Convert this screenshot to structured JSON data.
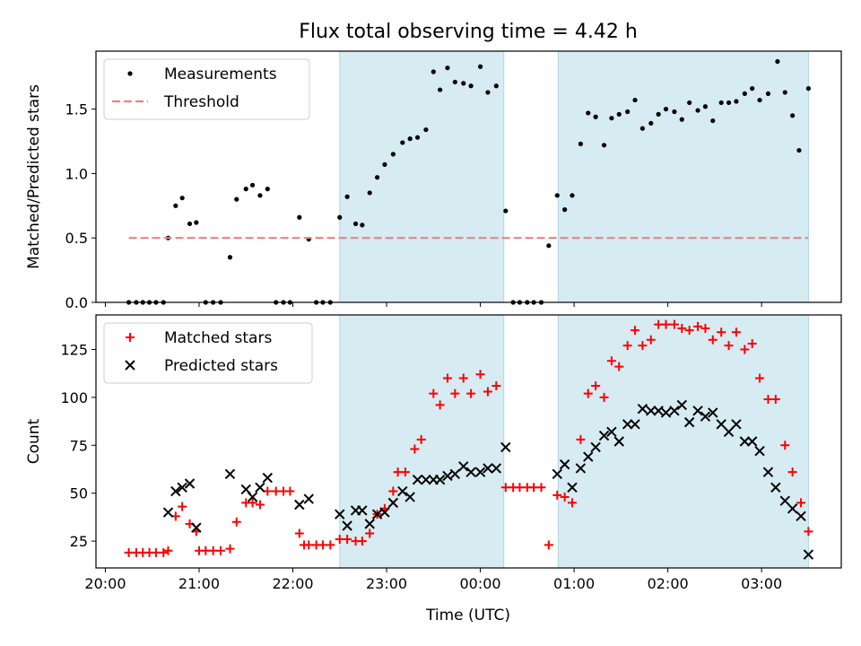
{
  "figure": {
    "title": "Flux total observing time = 4.42 h",
    "xlabel": "Time (UTC)",
    "x_ticks": [
      {
        "t": 20.0,
        "label": "20:00"
      },
      {
        "t": 21.0,
        "label": "21:00"
      },
      {
        "t": 22.0,
        "label": "22:00"
      },
      {
        "t": 23.0,
        "label": "23:00"
      },
      {
        "t": 24.0,
        "label": "00:00"
      },
      {
        "t": 25.0,
        "label": "01:00"
      },
      {
        "t": 26.0,
        "label": "02:00"
      },
      {
        "t": 27.0,
        "label": "03:00"
      }
    ],
    "x_range_hours": [
      19.9,
      27.85
    ],
    "shaded_intervals": [
      [
        22.5,
        24.25
      ],
      [
        24.83,
        27.5
      ]
    ],
    "colors": {
      "shade": "#add8e6",
      "measurements": "#000000",
      "threshold": "#f08080",
      "matched": "#ff0000",
      "predicted": "#000000"
    }
  },
  "chart_data": [
    {
      "type": "scatter",
      "ylabel": "Matched/Predicted stars",
      "ylim": [
        0,
        1.95
      ],
      "yticks": [
        0.0,
        0.5,
        1.0,
        1.5
      ],
      "ytick_labels": [
        "0.0",
        "0.5",
        "1.0",
        "1.5"
      ],
      "legend_position": "upper-left",
      "series": [
        {
          "name": "Measurements",
          "marker": "dot",
          "points": [
            [
              20.25,
              0
            ],
            [
              20.33,
              0
            ],
            [
              20.4,
              0
            ],
            [
              20.47,
              0
            ],
            [
              20.54,
              0
            ],
            [
              20.62,
              0
            ],
            [
              20.67,
              0.5
            ],
            [
              20.75,
              0.75
            ],
            [
              20.82,
              0.81
            ],
            [
              20.9,
              0.61
            ],
            [
              20.97,
              0.62
            ],
            [
              21.07,
              0
            ],
            [
              21.15,
              0
            ],
            [
              21.23,
              0
            ],
            [
              21.33,
              0.35
            ],
            [
              21.4,
              0.8
            ],
            [
              21.5,
              0.88
            ],
            [
              21.57,
              0.91
            ],
            [
              21.65,
              0.83
            ],
            [
              21.73,
              0.88
            ],
            [
              21.82,
              0
            ],
            [
              21.9,
              0
            ],
            [
              21.97,
              0
            ],
            [
              22.07,
              0.66
            ],
            [
              22.17,
              0.49
            ],
            [
              22.25,
              0
            ],
            [
              22.32,
              0
            ],
            [
              22.4,
              0
            ],
            [
              22.5,
              0.66
            ],
            [
              22.58,
              0.82
            ],
            [
              22.67,
              0.61
            ],
            [
              22.74,
              0.6
            ],
            [
              22.82,
              0.85
            ],
            [
              22.9,
              0.97
            ],
            [
              22.98,
              1.07
            ],
            [
              23.07,
              1.15
            ],
            [
              23.17,
              1.24
            ],
            [
              23.25,
              1.27
            ],
            [
              23.33,
              1.28
            ],
            [
              23.42,
              1.34
            ],
            [
              23.5,
              1.79
            ],
            [
              23.57,
              1.65
            ],
            [
              23.65,
              1.82
            ],
            [
              23.73,
              1.71
            ],
            [
              23.82,
              1.7
            ],
            [
              23.9,
              1.68
            ],
            [
              24.0,
              1.83
            ],
            [
              24.08,
              1.63
            ],
            [
              24.17,
              1.68
            ],
            [
              24.27,
              0.71
            ],
            [
              24.35,
              0
            ],
            [
              24.42,
              0
            ],
            [
              24.5,
              0
            ],
            [
              24.57,
              0
            ],
            [
              24.65,
              0
            ],
            [
              24.73,
              0.44
            ],
            [
              24.82,
              0.83
            ],
            [
              24.9,
              0.72
            ],
            [
              24.98,
              0.83
            ],
            [
              25.07,
              1.23
            ],
            [
              25.15,
              1.47
            ],
            [
              25.23,
              1.44
            ],
            [
              25.32,
              1.22
            ],
            [
              25.4,
              1.43
            ],
            [
              25.48,
              1.46
            ],
            [
              25.57,
              1.48
            ],
            [
              25.65,
              1.57
            ],
            [
              25.73,
              1.35
            ],
            [
              25.82,
              1.39
            ],
            [
              25.9,
              1.46
            ],
            [
              25.98,
              1.5
            ],
            [
              26.07,
              1.48
            ],
            [
              26.15,
              1.42
            ],
            [
              26.23,
              1.55
            ],
            [
              26.32,
              1.49
            ],
            [
              26.4,
              1.52
            ],
            [
              26.48,
              1.41
            ],
            [
              26.57,
              1.55
            ],
            [
              26.65,
              1.55
            ],
            [
              26.73,
              1.56
            ],
            [
              26.82,
              1.62
            ],
            [
              26.9,
              1.66
            ],
            [
              26.98,
              1.57
            ],
            [
              27.07,
              1.62
            ],
            [
              27.17,
              1.87
            ],
            [
              27.25,
              1.63
            ],
            [
              27.33,
              1.45
            ],
            [
              27.4,
              1.18
            ],
            [
              27.5,
              1.66
            ]
          ]
        },
        {
          "name": "Threshold",
          "marker": "dashed-line",
          "points": [
            [
              20.25,
              0.5
            ],
            [
              27.5,
              0.5
            ]
          ]
        }
      ]
    },
    {
      "type": "scatter",
      "ylabel": "Count",
      "ylim": [
        11,
        143
      ],
      "yticks": [
        25,
        50,
        75,
        100,
        125
      ],
      "ytick_labels": [
        "25",
        "50",
        "75",
        "100",
        "125"
      ],
      "legend_position": "upper-left",
      "series": [
        {
          "name": "Matched stars",
          "marker": "plus",
          "points": [
            [
              20.25,
              19
            ],
            [
              20.33,
              19
            ],
            [
              20.4,
              19
            ],
            [
              20.47,
              19
            ],
            [
              20.54,
              19
            ],
            [
              20.62,
              19
            ],
            [
              20.67,
              20
            ],
            [
              20.75,
              38
            ],
            [
              20.82,
              43
            ],
            [
              20.9,
              34
            ],
            [
              20.97,
              30
            ],
            [
              21.0,
              20
            ],
            [
              21.07,
              20
            ],
            [
              21.15,
              20
            ],
            [
              21.23,
              20
            ],
            [
              21.33,
              21
            ],
            [
              21.4,
              35
            ],
            [
              21.5,
              45
            ],
            [
              21.57,
              45
            ],
            [
              21.65,
              44
            ],
            [
              21.73,
              51
            ],
            [
              21.82,
              51
            ],
            [
              21.9,
              51
            ],
            [
              21.97,
              51
            ],
            [
              22.07,
              29
            ],
            [
              22.12,
              23
            ],
            [
              22.17,
              23
            ],
            [
              22.25,
              23
            ],
            [
              22.32,
              23
            ],
            [
              22.4,
              23
            ],
            [
              22.5,
              26
            ],
            [
              22.58,
              26
            ],
            [
              22.67,
              25
            ],
            [
              22.74,
              25
            ],
            [
              22.82,
              29
            ],
            [
              22.9,
              39
            ],
            [
              22.98,
              42
            ],
            [
              23.07,
              51
            ],
            [
              23.12,
              61
            ],
            [
              23.2,
              61
            ],
            [
              23.3,
              73
            ],
            [
              23.37,
              78
            ],
            [
              23.5,
              102
            ],
            [
              23.57,
              96
            ],
            [
              23.65,
              110
            ],
            [
              23.73,
              102
            ],
            [
              23.82,
              110
            ],
            [
              23.9,
              102
            ],
            [
              24.0,
              112
            ],
            [
              24.08,
              103
            ],
            [
              24.17,
              106
            ],
            [
              24.27,
              53
            ],
            [
              24.35,
              53
            ],
            [
              24.42,
              53
            ],
            [
              24.5,
              53
            ],
            [
              24.57,
              53
            ],
            [
              24.65,
              53
            ],
            [
              24.73,
              23
            ],
            [
              24.82,
              49
            ],
            [
              24.9,
              48
            ],
            [
              24.98,
              45
            ],
            [
              25.07,
              78
            ],
            [
              25.15,
              102
            ],
            [
              25.23,
              106
            ],
            [
              25.32,
              100
            ],
            [
              25.4,
              119
            ],
            [
              25.48,
              116
            ],
            [
              25.57,
              127
            ],
            [
              25.65,
              135
            ],
            [
              25.73,
              127
            ],
            [
              25.82,
              130
            ],
            [
              25.9,
              138
            ],
            [
              25.98,
              138
            ],
            [
              26.07,
              138
            ],
            [
              26.15,
              136
            ],
            [
              26.23,
              135
            ],
            [
              26.32,
              137
            ],
            [
              26.4,
              136
            ],
            [
              26.48,
              130
            ],
            [
              26.57,
              134
            ],
            [
              26.65,
              127
            ],
            [
              26.73,
              134
            ],
            [
              26.82,
              125
            ],
            [
              26.9,
              128
            ],
            [
              26.98,
              110
            ],
            [
              27.07,
              99
            ],
            [
              27.15,
              99
            ],
            [
              27.25,
              75
            ],
            [
              27.33,
              61
            ],
            [
              27.42,
              45
            ],
            [
              27.5,
              30
            ]
          ]
        },
        {
          "name": "Predicted stars",
          "marker": "x",
          "points": [
            [
              20.67,
              40
            ],
            [
              20.75,
              51
            ],
            [
              20.82,
              53
            ],
            [
              20.9,
              55
            ],
            [
              20.97,
              32
            ],
            [
              21.33,
              60
            ],
            [
              21.5,
              52
            ],
            [
              21.57,
              48
            ],
            [
              21.65,
              53
            ],
            [
              21.73,
              58
            ],
            [
              22.07,
              44
            ],
            [
              22.17,
              47
            ],
            [
              22.5,
              39
            ],
            [
              22.58,
              33
            ],
            [
              22.67,
              41
            ],
            [
              22.74,
              41
            ],
            [
              22.82,
              34
            ],
            [
              22.9,
              39
            ],
            [
              22.98,
              40
            ],
            [
              23.07,
              45
            ],
            [
              23.17,
              51
            ],
            [
              23.25,
              48
            ],
            [
              23.33,
              57
            ],
            [
              23.42,
              57
            ],
            [
              23.5,
              57
            ],
            [
              23.57,
              57
            ],
            [
              23.65,
              59
            ],
            [
              23.73,
              60
            ],
            [
              23.82,
              64
            ],
            [
              23.9,
              61
            ],
            [
              24.0,
              61
            ],
            [
              24.08,
              63
            ],
            [
              24.17,
              63
            ],
            [
              24.27,
              74
            ],
            [
              24.82,
              60
            ],
            [
              24.9,
              65
            ],
            [
              24.98,
              53
            ],
            [
              25.07,
              63
            ],
            [
              25.15,
              69
            ],
            [
              25.23,
              74
            ],
            [
              25.32,
              80
            ],
            [
              25.4,
              82
            ],
            [
              25.48,
              77
            ],
            [
              25.57,
              86
            ],
            [
              25.65,
              86
            ],
            [
              25.73,
              94
            ],
            [
              25.82,
              93
            ],
            [
              25.9,
              93
            ],
            [
              25.98,
              92
            ],
            [
              26.07,
              93
            ],
            [
              26.15,
              96
            ],
            [
              26.23,
              87
            ],
            [
              26.32,
              93
            ],
            [
              26.4,
              90
            ],
            [
              26.48,
              92
            ],
            [
              26.57,
              86
            ],
            [
              26.65,
              82
            ],
            [
              26.73,
              86
            ],
            [
              26.82,
              77
            ],
            [
              26.9,
              77
            ],
            [
              26.98,
              72
            ],
            [
              27.07,
              61
            ],
            [
              27.15,
              53
            ],
            [
              27.25,
              46
            ],
            [
              27.33,
              42
            ],
            [
              27.42,
              38
            ],
            [
              27.5,
              18
            ]
          ]
        }
      ]
    }
  ]
}
